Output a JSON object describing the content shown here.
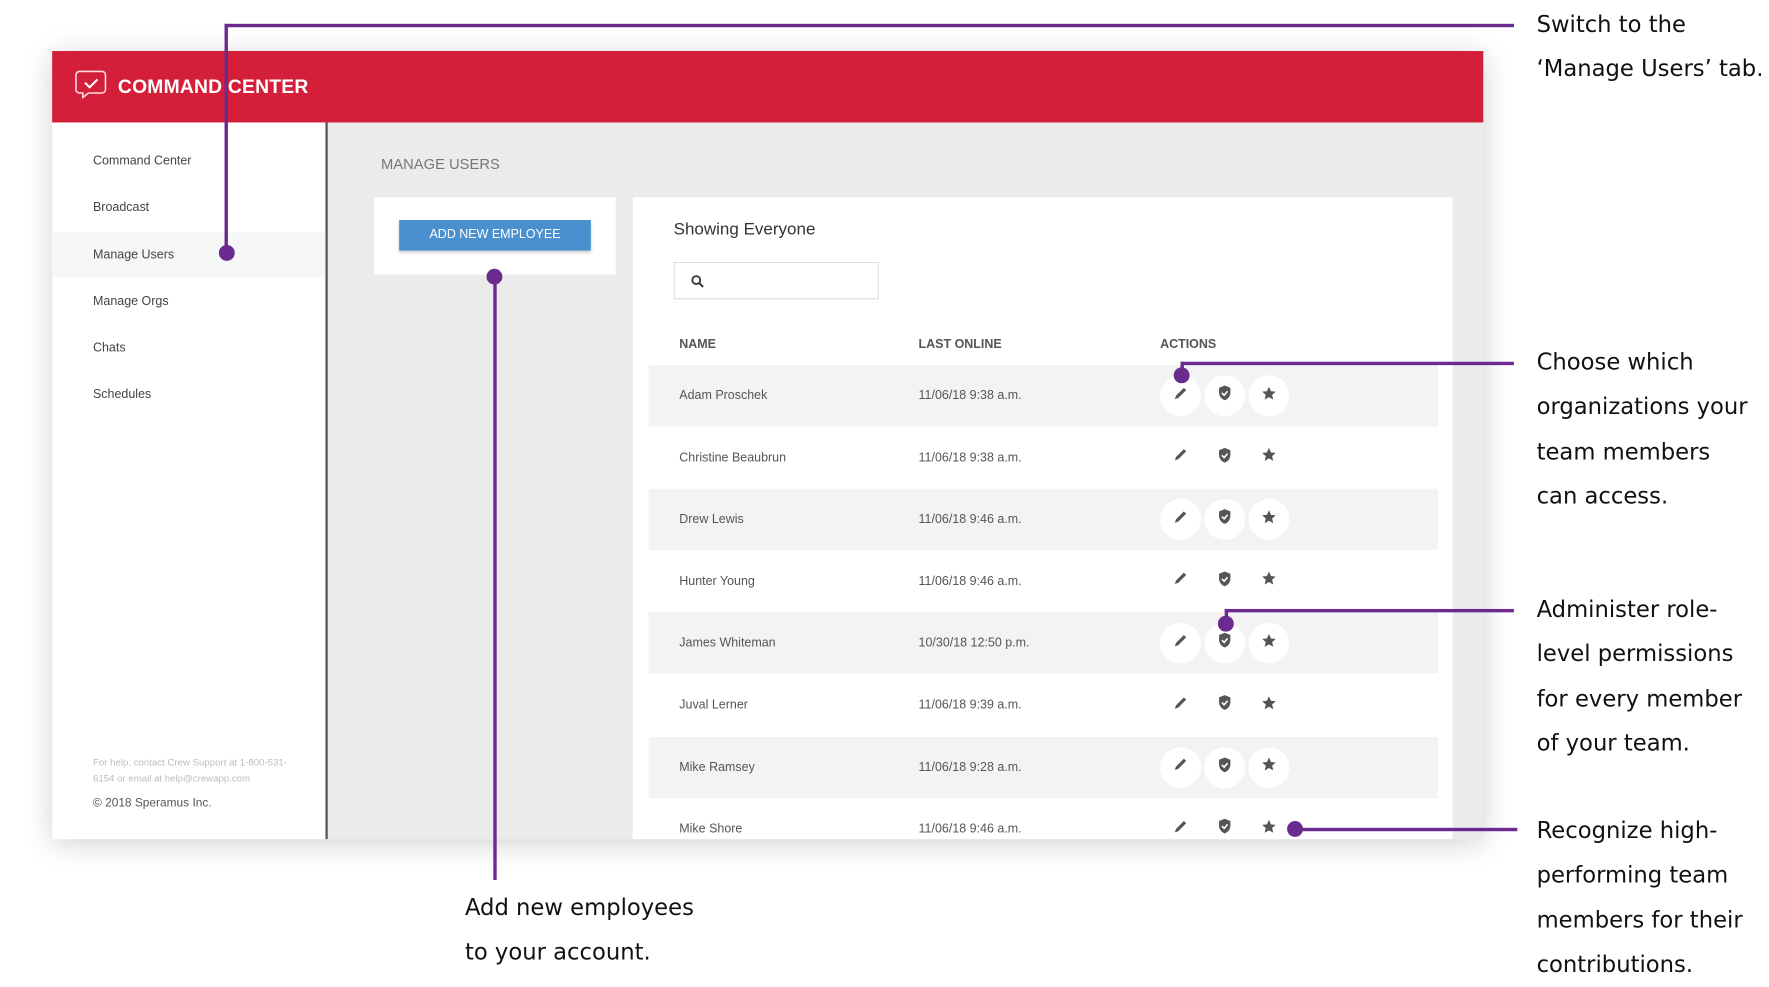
{
  "app": {
    "title": "COMMAND CENTER"
  },
  "sidebar": {
    "items": [
      {
        "label": "Command Center"
      },
      {
        "label": "Broadcast"
      },
      {
        "label": "Manage Users"
      },
      {
        "label": "Manage Orgs"
      },
      {
        "label": "Chats"
      },
      {
        "label": "Schedules"
      }
    ],
    "help": "For help, contact Crew Support at 1-800-531-6154 or email at help@crewapp.com",
    "copyright": "© 2018 Speramus Inc."
  },
  "main": {
    "title": "MANAGE USERS",
    "add_button": "ADD NEW EMPLOYEE",
    "list_title": "Showing Everyone",
    "search_placeholder": "",
    "columns": [
      "NAME",
      "LAST ONLINE",
      "ACTIONS"
    ],
    "rows": [
      {
        "name": "Adam Proschek",
        "last": "11/06/18 9:38 a.m."
      },
      {
        "name": "Christine Beaubrun",
        "last": "11/06/18 9:38 a.m."
      },
      {
        "name": "Drew Lewis",
        "last": "11/06/18 9:46 a.m."
      },
      {
        "name": "Hunter Young",
        "last": "11/06/18 9:46 a.m."
      },
      {
        "name": "James Whiteman",
        "last": "10/30/18 12:50 p.m."
      },
      {
        "name": "Juval Lerner",
        "last": "11/06/18 9:39 a.m."
      },
      {
        "name": "Mike Ramsey",
        "last": "11/06/18 9:28 a.m."
      },
      {
        "name": "Mike Shore",
        "last": "11/06/18 9:46 a.m."
      }
    ]
  },
  "annotations": {
    "tab": [
      "Switch to the",
      "‘Manage Users’ tab."
    ],
    "orgs": [
      "Choose which",
      "organizations your",
      "team members",
      "can access."
    ],
    "perms": [
      "Administer role-",
      "level permissions",
      "for every member",
      "of your team."
    ],
    "recognize": [
      "Recognize high-",
      "performing team",
      "members for their",
      "contributions."
    ],
    "add": [
      "Add new employees",
      "to your account."
    ]
  },
  "colors": {
    "brand": "#d41f3a",
    "accent": "#4a90cf",
    "annotation": "#6a2a8e"
  }
}
